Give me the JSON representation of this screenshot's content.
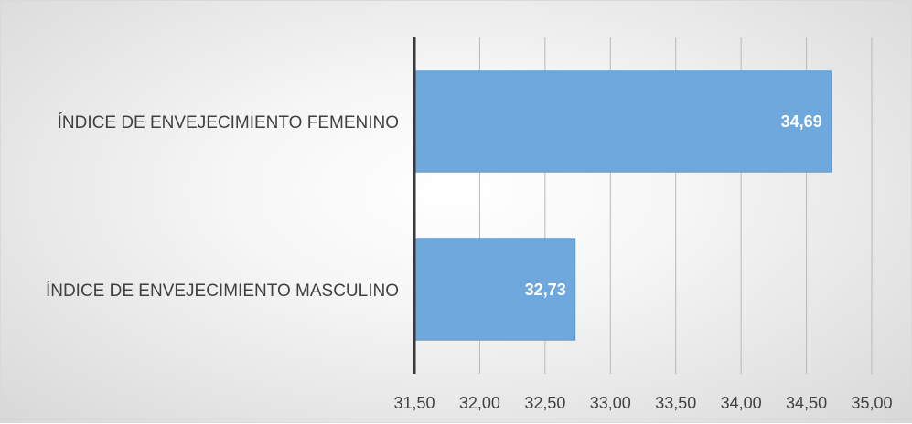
{
  "chart_data": {
    "type": "bar",
    "orientation": "horizontal",
    "categories": [
      "ÍNDICE DE ENVEJECIMIENTO FEMENINO",
      "ÍNDICE DE ENVEJECIMIENTO MASCULINO"
    ],
    "values": [
      34.69,
      32.73
    ],
    "value_labels": [
      "34,69",
      "32,73"
    ],
    "x_ticks": [
      "31,50",
      "32,00",
      "32,50",
      "33,00",
      "33,50",
      "34,00",
      "34,50",
      "35,00"
    ],
    "xlim": [
      31.5,
      35.0
    ],
    "title": "",
    "xlabel": "",
    "ylabel": "",
    "grid": "vertical",
    "legend": "none",
    "bar_color": "#6fa8dc",
    "bar_edge_color": "#5b9bd5"
  }
}
